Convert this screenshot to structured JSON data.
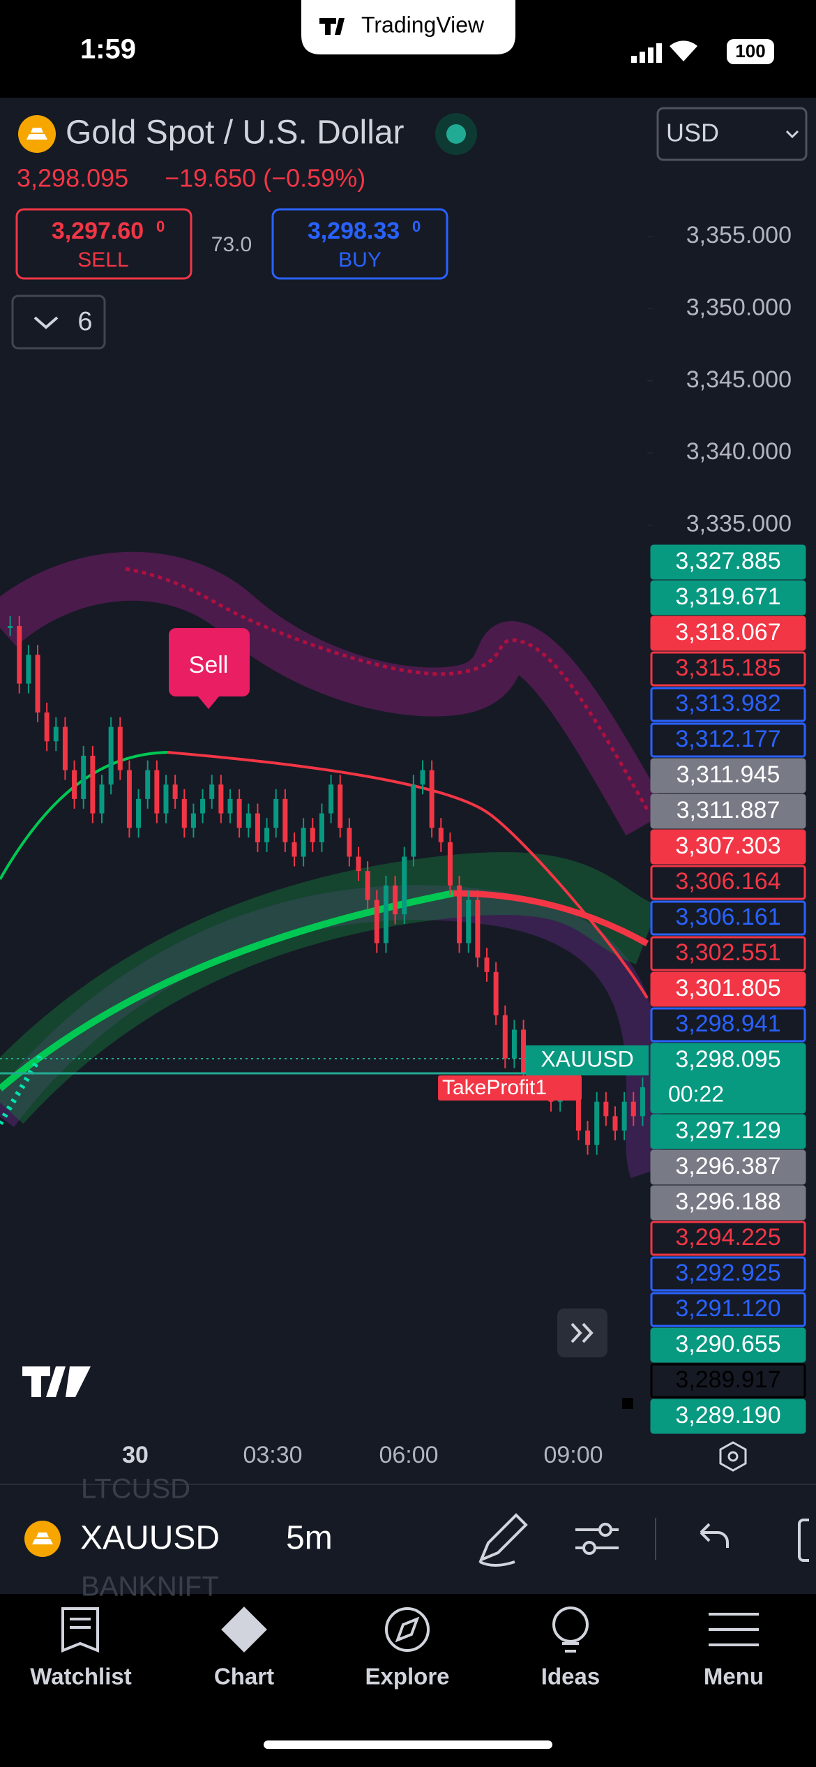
{
  "status_bar": {
    "time": "1:59",
    "battery": "100"
  },
  "header": {
    "app": "TradingView"
  },
  "symbol": {
    "name": "Gold Spot / U.S. Dollar",
    "price": "3,298.095",
    "change": "−19.650 (−0.59%)",
    "currency": "USD"
  },
  "trade": {
    "sell": {
      "price": "3,297.60",
      "sup": "0",
      "label": "SELL"
    },
    "spread": "73.0",
    "buy": {
      "price": "3,298.33",
      "sup": "0",
      "label": "BUY"
    }
  },
  "indicators_count": "6",
  "price_axis": {
    "ylim": [
      3271.8,
      3364.4
    ],
    "ticks": [
      {
        "value": 3355,
        "label": "3,355.000"
      },
      {
        "value": 3350,
        "label": "3,350.000"
      },
      {
        "value": 3345,
        "label": "3,345.000"
      },
      {
        "value": 3340,
        "label": "3,340.000"
      },
      {
        "value": 3335,
        "label": "3,335.000"
      }
    ]
  },
  "chart": {
    "closes": [
      3328,
      3324,
      3326,
      3322,
      3320,
      3321,
      3318,
      3316,
      3319,
      3315,
      3317,
      3321,
      3318,
      3314,
      3316,
      3318,
      3315,
      3317,
      3316,
      3314,
      3315,
      3316,
      3317,
      3315,
      3316,
      3314,
      3315,
      3313,
      3314,
      3316,
      3313,
      3312,
      3314,
      3313,
      3315,
      3317,
      3314,
      3312,
      3311,
      3309,
      3306,
      3310,
      3308,
      3312,
      3317,
      3318,
      3314,
      3313,
      3310,
      3306,
      3309,
      3305,
      3304,
      3301,
      3298,
      3300,
      3297,
      3298,
      3296,
      3295,
      3297,
      3298,
      3293,
      3292,
      3295,
      3294,
      3293,
      3295,
      3294,
      3296
    ],
    "up_color": "#089981",
    "down_color": "#f23645",
    "sell_signal": "Sell",
    "take_profit": "TakeProfit1",
    "symbol_tag": "XAUUSD"
  },
  "price_labels": [
    {
      "label": "3,327.885",
      "style": "green"
    },
    {
      "label": "3,319.671",
      "style": "green"
    },
    {
      "label": "3,318.067",
      "style": "red"
    },
    {
      "label": "3,315.185",
      "style": "red-outline"
    },
    {
      "label": "3,313.982",
      "style": "blue-outline"
    },
    {
      "label": "3,312.177",
      "style": "blue-outline"
    },
    {
      "label": "3,311.945",
      "style": "gray"
    },
    {
      "label": "3,311.887",
      "style": "gray"
    },
    {
      "label": "3,307.303",
      "style": "red"
    },
    {
      "label": "3,306.164",
      "style": "red-outline"
    },
    {
      "label": "3,306.161",
      "style": "blue-outline"
    },
    {
      "label": "3,302.551",
      "style": "red-outline"
    },
    {
      "label": "3,301.805",
      "style": "red"
    },
    {
      "label": "3,298.941",
      "style": "blue-outline"
    },
    {
      "label": "3,298.095",
      "style": "current",
      "countdown": "00:22"
    },
    {
      "label": "3,297.129",
      "style": "green"
    },
    {
      "label": "3,296.387",
      "style": "gray"
    },
    {
      "label": "3,296.188",
      "style": "gray"
    },
    {
      "label": "3,294.225",
      "style": "red-outline"
    },
    {
      "label": "3,292.925",
      "style": "blue-outline"
    },
    {
      "label": "3,291.120",
      "style": "blue-outline"
    },
    {
      "label": "3,290.655",
      "style": "green"
    },
    {
      "label": "3,289.917",
      "style": "dark-outline"
    },
    {
      "label": "3,289.190",
      "style": "green"
    }
  ],
  "time_axis": [
    "30",
    "03:30",
    "06:00",
    "09:00"
  ],
  "toolbar": {
    "symbol": "XAUUSD",
    "interval": "5m",
    "prev_symbol": "LTCUSD",
    "next_symbol": "BANKNIFT"
  },
  "nav": [
    "Watchlist",
    "Chart",
    "Explore",
    "Ideas",
    "Menu"
  ]
}
